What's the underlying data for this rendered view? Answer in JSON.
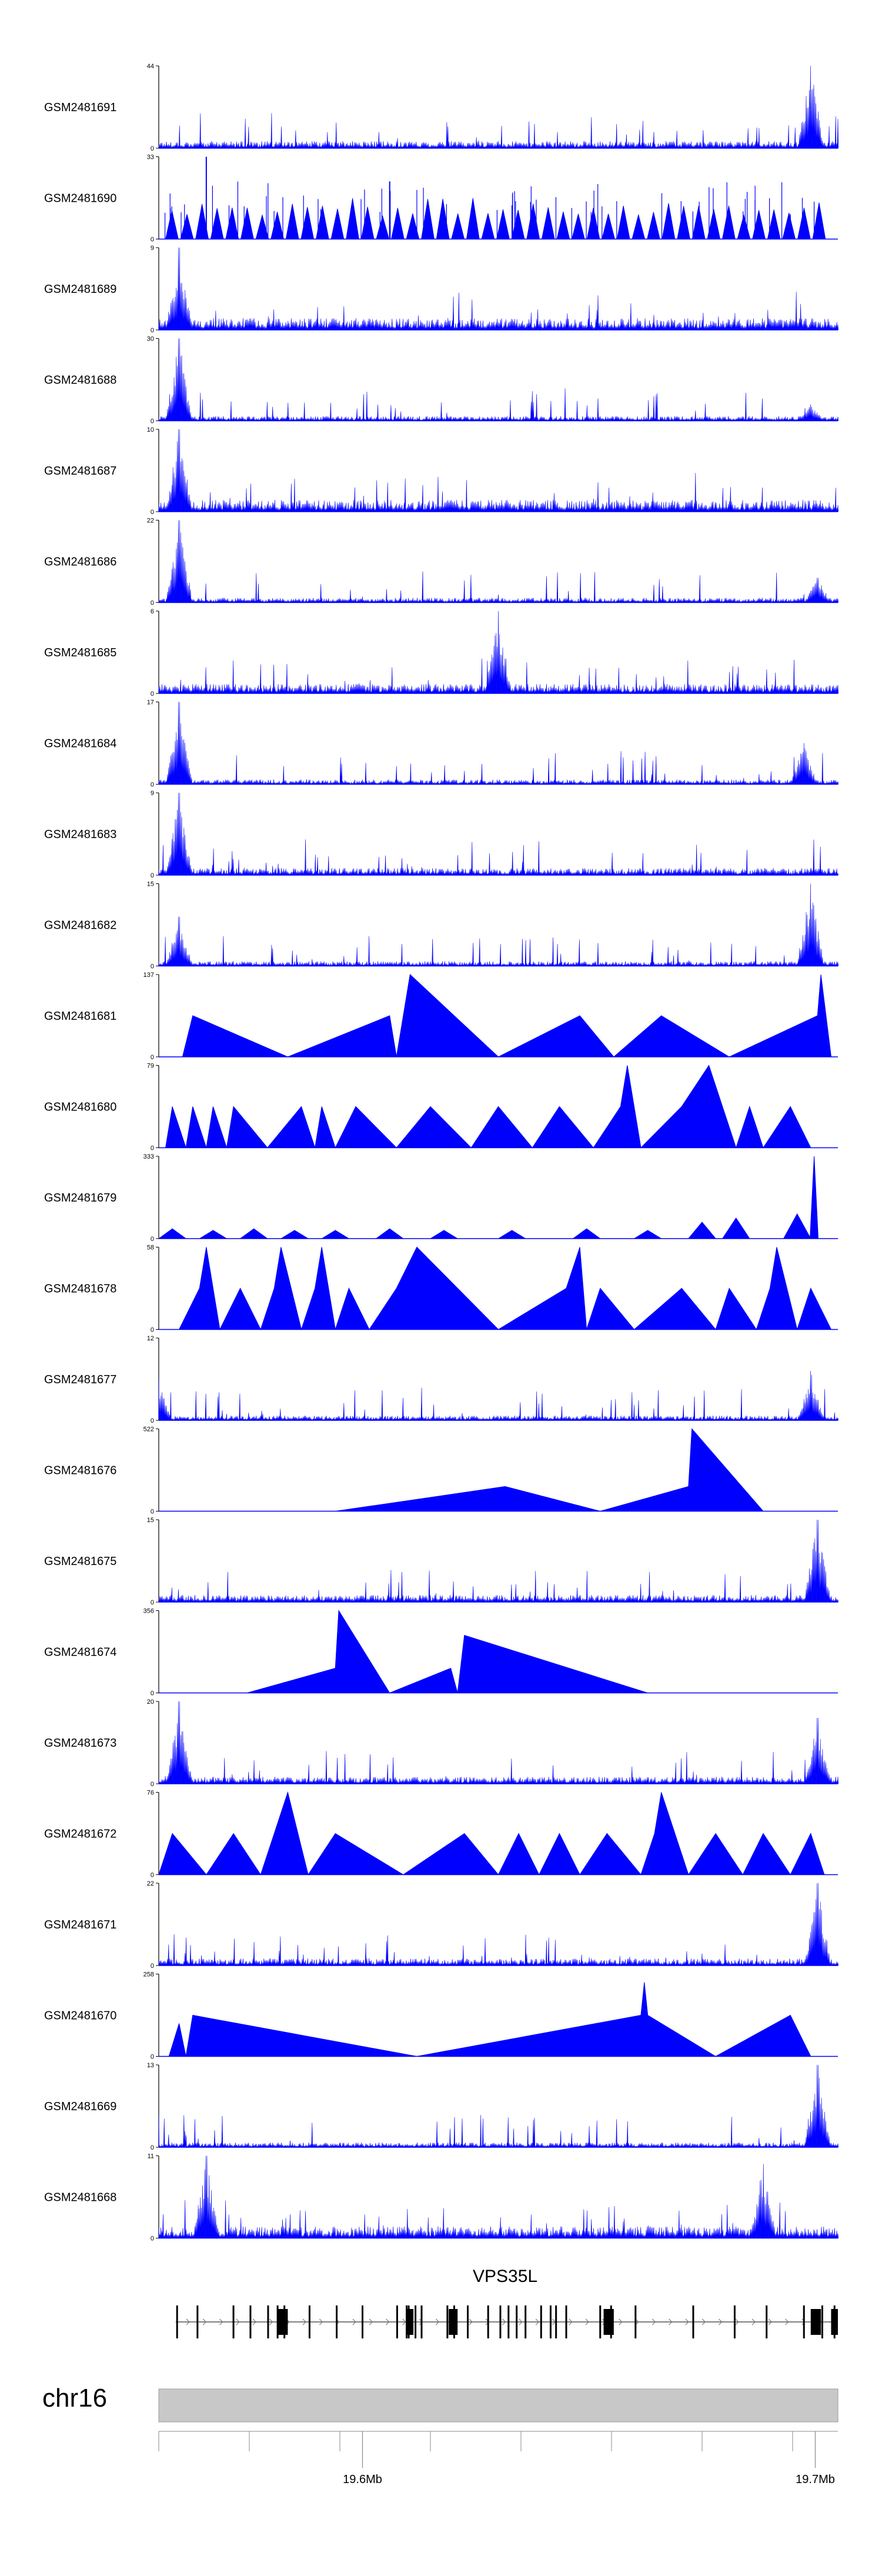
{
  "chart_data": {
    "type": "genome-browser-area",
    "title": "",
    "chromosome": "chr16",
    "gene": "VPS35L",
    "x_range": [
      19.555,
      19.705
    ],
    "x_unit": "Mb",
    "x_tick_labels": [
      {
        "value": 19.6,
        "label": "19.6Mb"
      },
      {
        "value": 19.7,
        "label": "19.7Mb"
      }
    ],
    "x_minor_ticks": [
      19.555,
      19.575,
      19.595,
      19.6,
      19.615,
      19.635,
      19.655,
      19.675,
      19.695,
      19.7
    ],
    "series_color": "#0000ff",
    "tracks": [
      {
        "name": "GSM2481691",
        "ymax": 44,
        "ymin": 0,
        "style": "dense",
        "base": 3,
        "peaks": [
          [
            0.96,
            1.0
          ]
        ]
      },
      {
        "name": "GSM2481690",
        "ymax": 33,
        "ymin": 0,
        "style": "triangles",
        "base": 9,
        "peaks": [
          [
            0.07,
            1.0
          ],
          [
            0.34,
            0.7
          ]
        ]
      },
      {
        "name": "GSM2481689",
        "ymax": 9,
        "ymin": 0,
        "style": "dense",
        "base": 5,
        "peaks": [
          [
            0.03,
            1.0
          ]
        ]
      },
      {
        "name": "GSM2481688",
        "ymax": 30,
        "ymin": 0,
        "style": "dense",
        "base": 2,
        "peaks": [
          [
            0.03,
            1.0
          ],
          [
            0.96,
            0.2
          ]
        ]
      },
      {
        "name": "GSM2481687",
        "ymax": 10,
        "ymin": 0,
        "style": "dense",
        "base": 5,
        "peaks": [
          [
            0.03,
            1.0
          ]
        ]
      },
      {
        "name": "GSM2481686",
        "ymax": 22,
        "ymin": 0,
        "style": "dense",
        "base": 2,
        "peaks": [
          [
            0.03,
            1.0
          ],
          [
            0.97,
            0.3
          ]
        ]
      },
      {
        "name": "GSM2481685",
        "ymax": 6,
        "ymin": 0,
        "style": "dense",
        "base": 4,
        "peaks": [
          [
            0.5,
            1.0
          ]
        ]
      },
      {
        "name": "GSM2481684",
        "ymax": 17,
        "ymin": 0,
        "style": "dense",
        "base": 2,
        "peaks": [
          [
            0.03,
            1.0
          ],
          [
            0.95,
            0.5
          ]
        ]
      },
      {
        "name": "GSM2481683",
        "ymax": 9,
        "ymin": 0,
        "style": "dense",
        "base": 3,
        "peaks": [
          [
            0.03,
            1.0
          ]
        ]
      },
      {
        "name": "GSM2481682",
        "ymax": 15,
        "ymin": 0,
        "style": "dense",
        "base": 2,
        "peaks": [
          [
            0.03,
            0.6
          ],
          [
            0.96,
            1.0
          ]
        ]
      },
      {
        "name": "GSM2481681",
        "ymax": 137,
        "ymin": 0,
        "style": "triangles",
        "base": 0,
        "peaks": [
          [
            0.035,
            0.0
          ],
          [
            0.05,
            0.5
          ],
          [
            0.19,
            0.0
          ],
          [
            0.34,
            0.5
          ],
          [
            0.35,
            0.0
          ],
          [
            0.37,
            1.0
          ],
          [
            0.5,
            0.0
          ],
          [
            0.62,
            0.5
          ],
          [
            0.67,
            0.0
          ],
          [
            0.74,
            0.5
          ],
          [
            0.84,
            0.0
          ],
          [
            0.97,
            0.5
          ],
          [
            0.975,
            1.0
          ],
          [
            0.99,
            0.0
          ]
        ]
      },
      {
        "name": "GSM2481680",
        "ymax": 79,
        "ymin": 0,
        "style": "triangles",
        "base": 0,
        "peaks": [
          [
            0.01,
            0.0
          ],
          [
            0.02,
            0.5
          ],
          [
            0.04,
            0.0
          ],
          [
            0.05,
            0.5
          ],
          [
            0.07,
            0.0
          ],
          [
            0.08,
            0.5
          ],
          [
            0.1,
            0.0
          ],
          [
            0.11,
            0.5
          ],
          [
            0.16,
            0.0
          ],
          [
            0.21,
            0.5
          ],
          [
            0.23,
            0.0
          ],
          [
            0.24,
            0.5
          ],
          [
            0.26,
            0.0
          ],
          [
            0.29,
            0.5
          ],
          [
            0.35,
            0.0
          ],
          [
            0.4,
            0.5
          ],
          [
            0.46,
            0.0
          ],
          [
            0.5,
            0.5
          ],
          [
            0.55,
            0.0
          ],
          [
            0.59,
            0.5
          ],
          [
            0.64,
            0.0
          ],
          [
            0.68,
            0.5
          ],
          [
            0.69,
            1.0
          ],
          [
            0.71,
            0.0
          ],
          [
            0.77,
            0.5
          ],
          [
            0.81,
            1.0
          ],
          [
            0.85,
            0.0
          ],
          [
            0.87,
            0.5
          ],
          [
            0.89,
            0.0
          ],
          [
            0.93,
            0.5
          ],
          [
            0.96,
            0.0
          ]
        ]
      },
      {
        "name": "GSM2481679",
        "ymax": 333,
        "ymin": 0,
        "style": "triangles-small",
        "base": 0,
        "peaks": [
          [
            0.02,
            0.12
          ],
          [
            0.08,
            0.1
          ],
          [
            0.14,
            0.12
          ],
          [
            0.2,
            0.1
          ],
          [
            0.26,
            0.1
          ],
          [
            0.34,
            0.12
          ],
          [
            0.42,
            0.1
          ],
          [
            0.52,
            0.1
          ],
          [
            0.63,
            0.12
          ],
          [
            0.72,
            0.1
          ],
          [
            0.8,
            0.2
          ],
          [
            0.85,
            0.25
          ],
          [
            0.94,
            0.3
          ],
          [
            0.965,
            1.0
          ]
        ]
      },
      {
        "name": "GSM2481678",
        "ymax": 58,
        "ymin": 0,
        "style": "triangles",
        "base": 0,
        "peaks": [
          [
            0.03,
            0.0
          ],
          [
            0.06,
            0.5
          ],
          [
            0.07,
            1.0
          ],
          [
            0.09,
            0.0
          ],
          [
            0.12,
            0.5
          ],
          [
            0.15,
            0.0
          ],
          [
            0.17,
            0.5
          ],
          [
            0.18,
            1.0
          ],
          [
            0.21,
            0.0
          ],
          [
            0.23,
            0.5
          ],
          [
            0.24,
            1.0
          ],
          [
            0.26,
            0.0
          ],
          [
            0.28,
            0.5
          ],
          [
            0.31,
            0.0
          ],
          [
            0.35,
            0.5
          ],
          [
            0.38,
            1.0
          ],
          [
            0.5,
            0.0
          ],
          [
            0.6,
            0.5
          ],
          [
            0.62,
            1.0
          ],
          [
            0.63,
            0.0
          ],
          [
            0.65,
            0.5
          ],
          [
            0.7,
            0.0
          ],
          [
            0.77,
            0.5
          ],
          [
            0.82,
            0.0
          ],
          [
            0.84,
            0.5
          ],
          [
            0.88,
            0.0
          ],
          [
            0.9,
            0.5
          ],
          [
            0.91,
            1.0
          ],
          [
            0.94,
            0.0
          ],
          [
            0.96,
            0.5
          ],
          [
            0.99,
            0.0
          ]
        ]
      },
      {
        "name": "GSM2481677",
        "ymax": 12,
        "ymin": 0,
        "style": "dense",
        "base": 2,
        "peaks": [
          [
            0.0,
            0.5
          ],
          [
            0.96,
            0.6
          ]
        ]
      },
      {
        "name": "GSM2481676",
        "ymax": 522,
        "ymin": 0,
        "style": "triangles",
        "base": 0,
        "peaks": [
          [
            0.26,
            0.0
          ],
          [
            0.51,
            0.3
          ],
          [
            0.65,
            0.0
          ],
          [
            0.78,
            0.3
          ],
          [
            0.785,
            1.0
          ],
          [
            0.89,
            0.0
          ]
        ]
      },
      {
        "name": "GSM2481675",
        "ymax": 15,
        "ymin": 0,
        "style": "dense",
        "base": 3,
        "peaks": [
          [
            0.97,
            1.0
          ]
        ]
      },
      {
        "name": "GSM2481674",
        "ymax": 356,
        "ymin": 0,
        "style": "triangles",
        "base": 0,
        "peaks": [
          [
            0.13,
            0.0
          ],
          [
            0.26,
            0.3
          ],
          [
            0.265,
            1.0
          ],
          [
            0.34,
            0.0
          ],
          [
            0.43,
            0.3
          ],
          [
            0.44,
            0.0
          ],
          [
            0.45,
            0.7
          ],
          [
            0.72,
            0.0
          ]
        ]
      },
      {
        "name": "GSM2481673",
        "ymax": 20,
        "ymin": 0,
        "style": "dense",
        "base": 3,
        "peaks": [
          [
            0.03,
            1.0
          ],
          [
            0.97,
            0.8
          ]
        ]
      },
      {
        "name": "GSM2481672",
        "ymax": 76,
        "ymin": 0,
        "style": "triangles",
        "base": 0,
        "peaks": [
          [
            0.0,
            0.0
          ],
          [
            0.02,
            0.5
          ],
          [
            0.07,
            0.0
          ],
          [
            0.11,
            0.5
          ],
          [
            0.15,
            0.0
          ],
          [
            0.17,
            0.5
          ],
          [
            0.19,
            1.0
          ],
          [
            0.22,
            0.0
          ],
          [
            0.26,
            0.5
          ],
          [
            0.36,
            0.0
          ],
          [
            0.45,
            0.5
          ],
          [
            0.5,
            0.0
          ],
          [
            0.53,
            0.5
          ],
          [
            0.56,
            0.0
          ],
          [
            0.59,
            0.5
          ],
          [
            0.62,
            0.0
          ],
          [
            0.66,
            0.5
          ],
          [
            0.71,
            0.0
          ],
          [
            0.73,
            0.5
          ],
          [
            0.74,
            1.0
          ],
          [
            0.78,
            0.0
          ],
          [
            0.82,
            0.5
          ],
          [
            0.86,
            0.0
          ],
          [
            0.89,
            0.5
          ],
          [
            0.93,
            0.0
          ],
          [
            0.96,
            0.5
          ],
          [
            0.98,
            0.0
          ]
        ]
      },
      {
        "name": "GSM2481671",
        "ymax": 22,
        "ymin": 0,
        "style": "dense",
        "base": 3,
        "peaks": [
          [
            0.97,
            1.0
          ]
        ]
      },
      {
        "name": "GSM2481670",
        "ymax": 258,
        "ymin": 0,
        "style": "triangles",
        "base": 0,
        "peaks": [
          [
            0.015,
            0.0
          ],
          [
            0.03,
            0.4
          ],
          [
            0.04,
            0.0
          ],
          [
            0.05,
            0.5
          ],
          [
            0.38,
            0.0
          ],
          [
            0.71,
            0.5
          ],
          [
            0.715,
            0.9
          ],
          [
            0.72,
            0.5
          ],
          [
            0.82,
            0.0
          ],
          [
            0.93,
            0.5
          ],
          [
            0.96,
            0.0
          ]
        ]
      },
      {
        "name": "GSM2481669",
        "ymax": 13,
        "ymin": 0,
        "style": "dense",
        "base": 2,
        "peaks": [
          [
            0.97,
            1.0
          ]
        ]
      },
      {
        "name": "GSM2481668",
        "ymax": 11,
        "ymin": 0,
        "style": "dense",
        "base": 5,
        "peaks": [
          [
            0.07,
            1.0
          ],
          [
            0.89,
            0.9
          ]
        ]
      }
    ],
    "gene_model": {
      "strand": "+",
      "exon_marks": [
        0.027,
        0.057,
        0.11,
        0.135,
        0.161,
        0.175,
        0.185,
        0.222,
        0.262,
        0.3,
        0.351,
        0.365,
        0.368,
        0.378,
        0.387,
        0.425,
        0.435,
        0.455,
        0.485,
        0.503,
        0.515,
        0.527,
        0.54,
        0.563,
        0.577,
        0.585,
        0.6,
        0.65,
        0.666,
        0.702,
        0.787,
        0.848,
        0.895,
        0.95,
        0.977,
        0.995
      ],
      "thick_exons": [
        [
          0.175,
          0.19
        ],
        [
          0.365,
          0.375
        ],
        [
          0.427,
          0.44
        ],
        [
          0.655,
          0.67
        ],
        [
          0.96,
          0.975
        ],
        [
          0.99,
          1.0
        ]
      ]
    }
  }
}
